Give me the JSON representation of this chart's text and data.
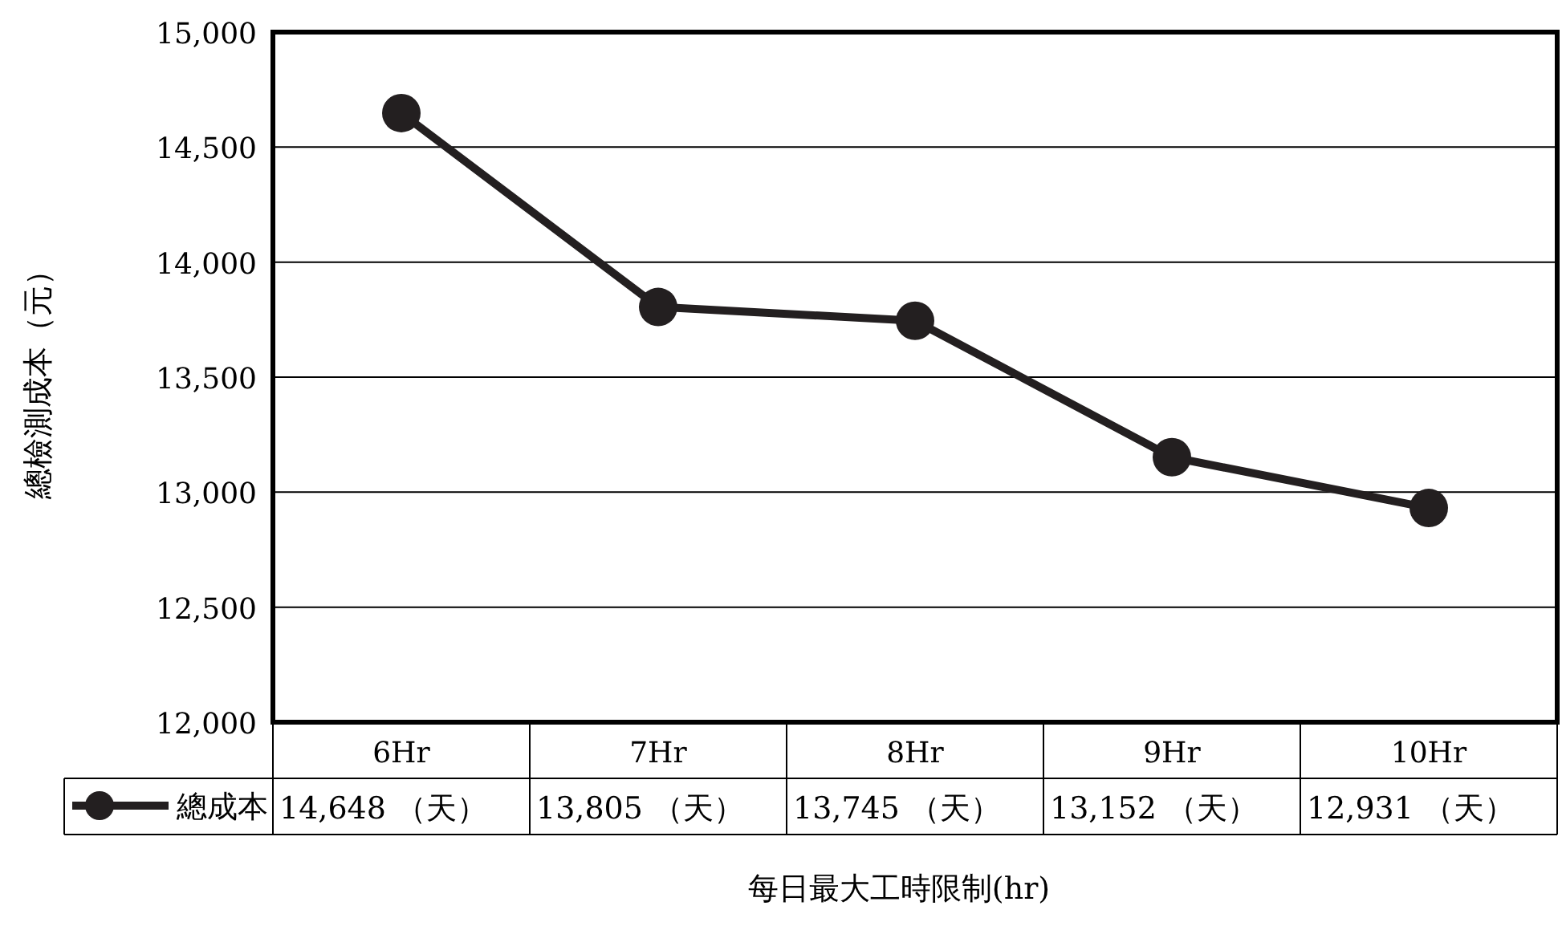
{
  "chart_data": {
    "type": "line",
    "xlabel": "每日最大工時限制(hr)",
    "ylabel": "總檢測成本（元）",
    "categories": [
      "6Hr",
      "7Hr",
      "8Hr",
      "9Hr",
      "10Hr"
    ],
    "series": [
      {
        "name": "總成本",
        "color": "#231f20",
        "values": [
          14648,
          13805,
          13745,
          13152,
          12931
        ],
        "value_labels": [
          "14,648 （天）",
          "13,805 （天）",
          "13,745 （天）",
          "13,152 （天）",
          "12,931 （天）"
        ]
      }
    ],
    "ylim": [
      12000,
      15000
    ],
    "yticks": [
      {
        "value": 12000,
        "label": "12,000"
      },
      {
        "value": 12500,
        "label": "12,500"
      },
      {
        "value": 13000,
        "label": "13,000"
      },
      {
        "value": 13500,
        "label": "13,500"
      },
      {
        "value": 14000,
        "label": "14,000"
      },
      {
        "value": 14500,
        "label": "14,500"
      },
      {
        "value": 15000,
        "label": "15,000"
      }
    ],
    "grid": "y",
    "legend": "bottom",
    "marker": "circle",
    "line_style": "solid"
  }
}
